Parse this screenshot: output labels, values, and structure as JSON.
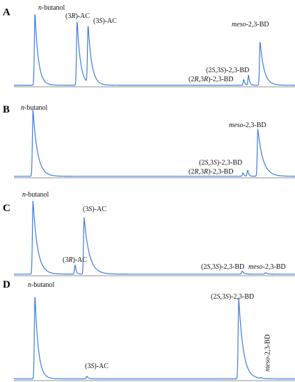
{
  "chart_data": [
    {
      "type": "line",
      "panel": "A",
      "peaks": [
        {
          "label_parts": [
            {
              "t": "n",
              "i": true
            },
            {
              "t": "-butanol"
            }
          ],
          "x": 0.075,
          "h": 1.0,
          "tail": 0.012
        },
        {
          "label_parts": [
            {
              "t": "(3"
            },
            {
              "t": "R",
              "i": true
            },
            {
              "t": ")-AC"
            }
          ],
          "x": 0.225,
          "h": 0.89,
          "tail": 0.012
        },
        {
          "label_parts": [
            {
              "t": "(3"
            },
            {
              "t": "S",
              "i": true
            },
            {
              "t": ")-AC"
            }
          ],
          "x": 0.264,
          "h": 0.8,
          "tail": 0.013
        },
        {
          "label_parts": [
            {
              "t": "(2"
            },
            {
              "t": "S",
              "i": true
            },
            {
              "t": ",3"
            },
            {
              "t": "S",
              "i": true
            },
            {
              "t": ")-2,3-BD"
            }
          ],
          "x": 0.818,
          "h": 0.08,
          "tail": 0.004
        },
        {
          "label_parts": [
            {
              "t": "(2"
            },
            {
              "t": "R",
              "i": true
            },
            {
              "t": ",3"
            },
            {
              "t": "R",
              "i": true
            },
            {
              "t": ")-2,3-BD"
            }
          ],
          "x": 0.835,
          "h": 0.14,
          "tail": 0.004
        },
        {
          "label_parts": [
            {
              "t": "meso",
              "i": true
            },
            {
              "t": "-2,3-BD"
            }
          ],
          "x": 0.876,
          "h": 0.6,
          "tail": 0.014
        }
      ]
    },
    {
      "type": "line",
      "panel": "B",
      "peaks": [
        {
          "label_parts": [
            {
              "t": "n",
              "i": true
            },
            {
              "t": "-butanol"
            }
          ],
          "x": 0.068,
          "h": 0.96,
          "tail": 0.016
        },
        {
          "label_parts": [
            {
              "t": "(2"
            },
            {
              "t": "S",
              "i": true
            },
            {
              "t": ",3"
            },
            {
              "t": "S",
              "i": true
            },
            {
              "t": ")-2,3-BD"
            }
          ],
          "x": 0.815,
          "h": 0.05,
          "tail": 0.004
        },
        {
          "label_parts": [
            {
              "t": "(2"
            },
            {
              "t": "R",
              "i": true
            },
            {
              "t": ",3"
            },
            {
              "t": "R",
              "i": true
            },
            {
              "t": ")-2,3-BD"
            }
          ],
          "x": 0.832,
          "h": 0.09,
          "tail": 0.004
        },
        {
          "label_parts": [
            {
              "t": "meso",
              "i": true
            },
            {
              "t": "-2,3-BD"
            }
          ],
          "x": 0.868,
          "h": 0.68,
          "tail": 0.018
        }
      ]
    },
    {
      "type": "line",
      "panel": "C",
      "peaks": [
        {
          "label_parts": [
            {
              "t": "n",
              "i": true
            },
            {
              "t": "-butanol"
            }
          ],
          "x": 0.068,
          "h": 0.96,
          "tail": 0.016
        },
        {
          "label_parts": [
            {
              "t": "(3"
            },
            {
              "t": "R",
              "i": true
            },
            {
              "t": ")-AC"
            }
          ],
          "x": 0.218,
          "h": 0.12,
          "tail": 0.004
        },
        {
          "label_parts": [
            {
              "t": "(3"
            },
            {
              "t": "S",
              "i": true
            },
            {
              "t": ")-AC"
            }
          ],
          "x": 0.25,
          "h": 0.74,
          "tail": 0.018
        },
        {
          "label_parts": [
            {
              "t": "(2"
            },
            {
              "t": "S",
              "i": true
            },
            {
              "t": ",3"
            },
            {
              "t": "S",
              "i": true
            },
            {
              "t": ")-2,3-BD"
            }
          ],
          "x": 0.812,
          "h": 0.04,
          "tail": 0.006
        },
        {
          "label_parts": [
            {
              "t": "meso",
              "i": true
            },
            {
              "t": "-2,3-BD"
            }
          ],
          "x": 0.895,
          "h": 0.02,
          "tail": 0.006
        }
      ]
    },
    {
      "type": "line",
      "panel": "D",
      "peaks": [
        {
          "label_parts": [
            {
              "t": "n",
              "i": true
            },
            {
              "t": "-butanol"
            }
          ],
          "x": 0.075,
          "h": 0.97,
          "tail": 0.012
        },
        {
          "label_parts": [
            {
              "t": "(3"
            },
            {
              "t": "S",
              "i": true
            },
            {
              "t": ")-AC"
            }
          ],
          "x": 0.26,
          "h": 0.03,
          "tail": 0.005
        },
        {
          "label_parts": [
            {
              "t": "(2"
            },
            {
              "t": "S",
              "i": true
            },
            {
              "t": ",3"
            },
            {
              "t": "S",
              "i": true
            },
            {
              "t": ")-2,3-BD"
            }
          ],
          "x": 0.8,
          "h": 0.93,
          "tail": 0.016
        },
        {
          "label_parts": [
            {
              "t": "meso",
              "i": true
            },
            {
              "t": "-2,3-BD"
            }
          ],
          "x": 0.88,
          "h": 0.01,
          "tail": 0.005
        }
      ]
    }
  ]
}
